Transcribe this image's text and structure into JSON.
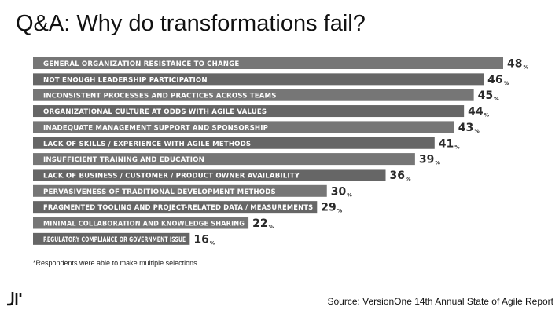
{
  "title": "Q&A: Why do transformations fail?",
  "footnote": "*Respondents were able to make multiple selections",
  "source": "Source: VersionOne 14th Annual State of Agile Report",
  "colors": {
    "bar_light": "#767676",
    "bar_dark": "#666666"
  },
  "logo_icon": "company-logo-icon",
  "chart_data": {
    "type": "bar",
    "orientation": "horizontal",
    "unit": "%",
    "categories": [
      "GENERAL ORGANIZATION RESISTANCE TO CHANGE",
      "NOT ENOUGH LEADERSHIP PARTICIPATION",
      "INCONSISTENT PROCESSES AND PRACTICES ACROSS TEAMS",
      "ORGANIZATIONAL CULTURE AT ODDS WITH AGILE VALUES",
      "INADEQUATE MANAGEMENT SUPPORT AND SPONSORSHIP",
      "LACK OF SKILLS / EXPERIENCE WITH AGILE METHODS",
      "INSUFFICIENT TRAINING AND EDUCATION",
      "LACK OF BUSINESS / CUSTOMER / PRODUCT OWNER AVAILABILITY",
      "PERVASIVENESS OF TRADITIONAL DEVELOPMENT METHODS",
      "FRAGMENTED TOOLING AND PROJECT-RELATED DATA / MEASUREMENTS",
      "MINIMAL COLLABORATION AND KNOWLEDGE SHARING",
      "REGULATORY COMPLIANCE OR GOVERNMENT ISSUE"
    ],
    "values": [
      48,
      46,
      45,
      44,
      43,
      41,
      39,
      36,
      30,
      29,
      22,
      16
    ],
    "value_labels": [
      "48",
      "46",
      "45",
      "44",
      "43",
      "41",
      "39",
      "36",
      "30",
      "29",
      "22",
      "16"
    ],
    "xlim": [
      0,
      48
    ],
    "grid": false,
    "legend": "none"
  }
}
